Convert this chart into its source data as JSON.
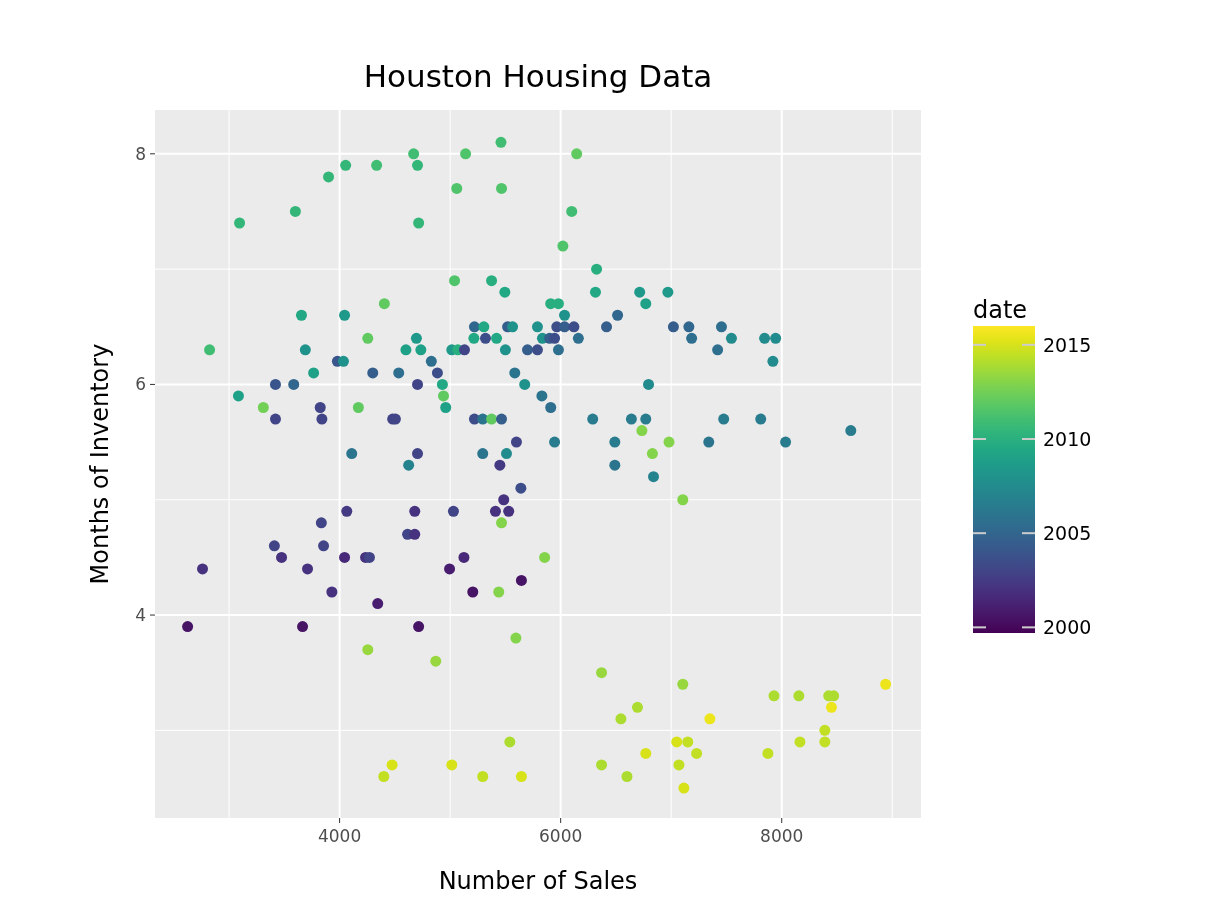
{
  "chart_data": {
    "type": "scatter",
    "title": "Houston Housing Data",
    "xlabel": "Number of Sales",
    "ylabel": "Months of Inventory",
    "clabel": "date",
    "xlim": [
      2330,
      9260
    ],
    "ylim": [
      2.24,
      8.38
    ],
    "xticks": [
      4000,
      6000,
      8000
    ],
    "yticks": [
      4,
      6,
      8
    ],
    "grid": true,
    "marker": "circle",
    "clim": [
      1999.7,
      2016
    ],
    "cticks": [
      2000,
      2005,
      2010,
      2015
    ],
    "series": [
      {
        "x": [
          5460,
          4670,
          5140,
          6145,
          4055,
          4335,
          4705,
          3900,
          5060,
          5465,
          6100,
          3600,
          3095,
          4715,
          6020,
          6325,
          5040,
          5375,
          5495,
          4405,
          6315,
          5910,
          5980,
          6715,
          6970,
          6770,
          3655,
          4045,
          6035,
          6515,
          2824,
          4255,
          4695,
          3690,
          4600,
          4735,
          3980,
          4035,
          3765,
          4300,
          4535,
          4830,
          4885,
          4930,
          4940,
          4960,
          3420,
          3585,
          4705,
          3085,
          3310,
          3420,
          3825,
          3840,
          4170,
          4480,
          4505,
          5220,
          5295,
          5375,
          5465,
          5600,
          4110,
          4705,
          4625,
          5295,
          5510,
          5450,
          5945,
          5220,
          5305,
          5520,
          5565,
          5790,
          5965,
          6035,
          6120,
          6415,
          7020,
          7160,
          7455,
          5215,
          5320,
          5420,
          5835,
          5900,
          5945,
          6160,
          7185,
          7545,
          7845,
          7945,
          5015,
          5070,
          5130,
          5500,
          5700,
          5790,
          5980,
          7420,
          7920,
          5585,
          5675,
          5830,
          5910,
          6795,
          6290,
          6640,
          6770,
          7475,
          7810,
          6735,
          8625,
          6490,
          6980,
          7340,
          8035,
          6830,
          6490,
          6840,
          7105,
          5640,
          5485,
          4065,
          4680,
          5030,
          5410,
          5530,
          5465,
          3835,
          4615,
          4680,
          3410,
          3855,
          3475,
          4045,
          4235,
          4270,
          5125,
          5855,
          2760,
          3710,
          4995,
          5645,
          3930,
          5205,
          5440,
          4345,
          2625,
          3665,
          4715,
          5595,
          4255,
          4870,
          5540,
          4475,
          5015,
          4400,
          5295,
          5645,
          6370,
          7105,
          8940,
          7930,
          8155,
          8425,
          8470,
          8450,
          6695,
          6545,
          7350,
          8390,
          7050,
          7150,
          8165,
          8390,
          6770,
          7230,
          7875,
          6370,
          7070,
          6600,
          7115
        ],
        "values": [
          8.1,
          8.0,
          8.0,
          8.0,
          7.9,
          7.9,
          7.9,
          7.8,
          7.7,
          7.7,
          7.5,
          7.5,
          7.4,
          7.4,
          7.2,
          7.0,
          6.9,
          6.9,
          6.8,
          6.7,
          6.8,
          6.7,
          6.7,
          6.8,
          6.8,
          6.7,
          6.6,
          6.6,
          6.6,
          6.6,
          6.3,
          6.4,
          6.4,
          6.3,
          6.3,
          6.3,
          6.2,
          6.2,
          6.1,
          6.1,
          6.1,
          6.2,
          6.1,
          6.0,
          5.9,
          5.8,
          6.0,
          6.0,
          6.0,
          5.9,
          5.8,
          5.7,
          5.8,
          5.7,
          5.8,
          5.7,
          5.7,
          5.7,
          5.7,
          5.7,
          5.7,
          5.5,
          5.4,
          5.4,
          5.3,
          5.4,
          5.4,
          5.3,
          5.5,
          6.5,
          6.5,
          6.5,
          6.5,
          6.5,
          6.5,
          6.5,
          6.5,
          6.5,
          6.5,
          6.5,
          6.5,
          6.4,
          6.4,
          6.4,
          6.4,
          6.4,
          6.4,
          6.4,
          6.4,
          6.4,
          6.4,
          6.4,
          6.3,
          6.3,
          6.3,
          6.3,
          6.3,
          6.3,
          6.3,
          6.3,
          6.2,
          6.1,
          6.0,
          5.9,
          5.8,
          6.0,
          5.7,
          5.7,
          5.7,
          5.7,
          5.7,
          5.6,
          5.6,
          5.5,
          5.5,
          5.5,
          5.5,
          5.4,
          5.3,
          5.2,
          5.0,
          5.1,
          5.0,
          4.9,
          4.9,
          4.9,
          4.9,
          4.9,
          4.8,
          4.8,
          4.7,
          4.7,
          4.6,
          4.6,
          4.5,
          4.5,
          4.5,
          4.5,
          4.5,
          4.5,
          4.4,
          4.4,
          4.4,
          4.3,
          4.2,
          4.2,
          4.2,
          4.1,
          3.9,
          3.9,
          3.9,
          3.8,
          3.7,
          3.6,
          2.9,
          2.7,
          2.7,
          2.6,
          2.6,
          2.6,
          3.5,
          3.4,
          3.4,
          3.3,
          3.3,
          3.3,
          3.3,
          3.2,
          3.2,
          3.1,
          3.1,
          3.0,
          2.9,
          2.9,
          2.9,
          2.9,
          2.8,
          2.8,
          2.8,
          2.7,
          2.7,
          2.6,
          2.5
        ],
        "cvalues": [
          2011,
          2011,
          2011.5,
          2012,
          2010.5,
          2011,
          2010.5,
          2010.5,
          2011.5,
          2011.5,
          2011,
          2010.5,
          2010.5,
          2010.5,
          2011.5,
          2010,
          2011.5,
          2010,
          2009.5,
          2012,
          2009.5,
          2010,
          2010,
          2008.5,
          2008.5,
          2009,
          2009.5,
          2008.5,
          2008,
          2005,
          2011,
          2012,
          2008.5,
          2008,
          2009,
          2009,
          2004,
          2008,
          2009,
          2004.5,
          2005.5,
          2005.5,
          2003.5,
          2009.5,
          2012,
          2009,
          2004,
          2005,
          2003,
          2009,
          2012.5,
          2003,
          2003,
          2003,
          2012,
          2003,
          2003,
          2003.5,
          2006,
          2012,
          2004.5,
          2003,
          2006,
          2003,
          2007,
          2006,
          2007.5,
          2002.5,
          2006.5,
          2005,
          2009.5,
          2004.5,
          2008,
          2008,
          2003.5,
          2004.5,
          2003.5,
          2004.5,
          2004.5,
          2005,
          2005.5,
          2009.5,
          2003.5,
          2009.5,
          2008,
          2004.5,
          2003.5,
          2005.5,
          2005.5,
          2007.5,
          2007.5,
          2007.5,
          2008.5,
          2010,
          2003,
          2008,
          2004.5,
          2003.5,
          2005.5,
          2005.5,
          2007.5,
          2006,
          2008,
          2006,
          2005.5,
          2007.5,
          2006.5,
          2006.5,
          2006.5,
          2006.5,
          2006.5,
          2013,
          2006.5,
          2006.5,
          2013,
          2006,
          2006.5,
          2013,
          2006,
          2007,
          2013,
          2003.5,
          2002,
          2002.5,
          2002,
          2003,
          2002,
          2002,
          2013,
          2003,
          2003,
          2002,
          2003,
          2003,
          2002,
          2001.5,
          2002,
          2003,
          2001.5,
          2013,
          2002,
          2002,
          2001,
          2000.5,
          2002,
          2000.5,
          2013,
          2001,
          2000.5,
          2000.5,
          2000.5,
          2013,
          2013.5,
          2013.5,
          2014,
          2015,
          2015,
          2014.5,
          2014.5,
          2015,
          2013.5,
          2013.5,
          2015.5,
          2014,
          2014,
          2014,
          2014,
          2015.5,
          2014,
          2014,
          2015.5,
          2014.5,
          2015,
          2014.5,
          2014.5,
          2014.5,
          2015,
          2014.5,
          2014.5,
          2014,
          2014.5,
          2014,
          2015
        ]
      }
    ]
  }
}
